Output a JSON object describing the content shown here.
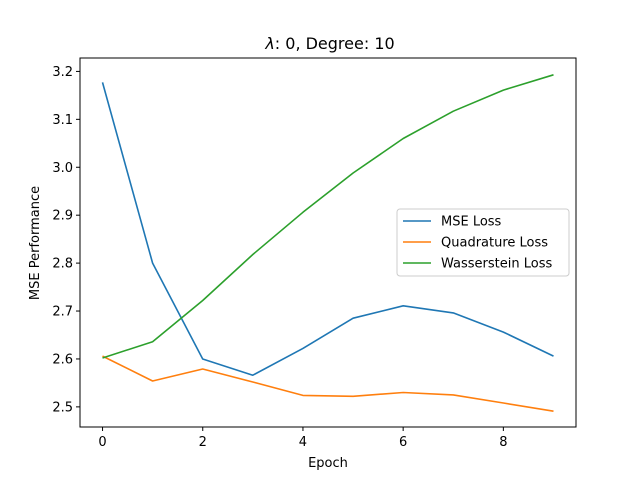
{
  "chart_data": {
    "type": "line",
    "title_prefix": "λ",
    "title_rest": ": 0, Degree: 10",
    "xlabel": "Epoch",
    "ylabel": "MSE Performance",
    "x": [
      0,
      1,
      2,
      3,
      4,
      5,
      6,
      7,
      8,
      9
    ],
    "xlim": [
      -0.45,
      9.45
    ],
    "ylim": [
      2.458,
      3.228
    ],
    "xticks": [
      0,
      2,
      4,
      6,
      8
    ],
    "yticks": [
      2.5,
      2.6,
      2.7,
      2.8,
      2.9,
      3.0,
      3.1,
      3.2
    ],
    "xtick_labels": [
      "0",
      "2",
      "4",
      "6",
      "8"
    ],
    "ytick_labels": [
      "2.5",
      "2.6",
      "2.7",
      "2.8",
      "2.9",
      "3.0",
      "3.1",
      "3.2"
    ],
    "grid": false,
    "legend_position": "center-right",
    "series": [
      {
        "name": "MSE Loss",
        "color": "#1f77b4",
        "values": [
          3.177,
          2.8,
          2.6,
          2.566,
          2.622,
          2.685,
          2.711,
          2.696,
          2.656,
          2.606
        ]
      },
      {
        "name": "Quadrature Loss",
        "color": "#ff7f0e",
        "values": [
          2.606,
          2.554,
          2.579,
          2.552,
          2.524,
          2.522,
          2.53,
          2.525,
          2.508,
          2.491
        ]
      },
      {
        "name": "Wasserstein Loss",
        "color": "#2ca02c",
        "values": [
          2.602,
          2.636,
          2.722,
          2.818,
          2.906,
          2.988,
          3.06,
          3.117,
          3.161,
          3.193
        ]
      }
    ]
  }
}
